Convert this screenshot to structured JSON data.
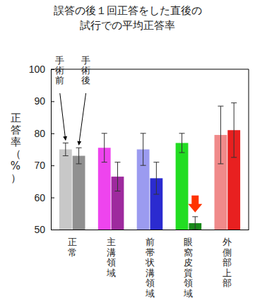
{
  "chart_data": {
    "type": "bar",
    "title": "誤答の後１回正答をした直後の\n試行での平均正答率",
    "y_label": "正答率（%）",
    "categories": [
      "正常",
      "主溝領域",
      "前帯状溝領域",
      "眼窩皮質領域",
      "外側部上部"
    ],
    "series": [
      {
        "name": "手術前",
        "colors": [
          "#c8c8c8",
          "#ee44ee",
          "#9b9bf0",
          "#22dd22",
          "#f08a8a"
        ],
        "values": [
          75,
          75.5,
          75,
          77,
          79.5
        ],
        "errors": [
          2,
          4.5,
          5,
          3,
          9
        ]
      },
      {
        "name": "手術後",
        "colors": [
          "#909090",
          "#9e2a9e",
          "#2b2bd0",
          "#1a8a1a",
          "#e82020"
        ],
        "values": [
          73,
          66.5,
          66,
          52,
          81
        ],
        "errors": [
          2.5,
          4.5,
          5,
          2,
          8.5
        ]
      }
    ],
    "ylim": [
      50,
      100
    ],
    "yticks": [
      50,
      60,
      70,
      80,
      90,
      100
    ],
    "grid": false
  }
}
